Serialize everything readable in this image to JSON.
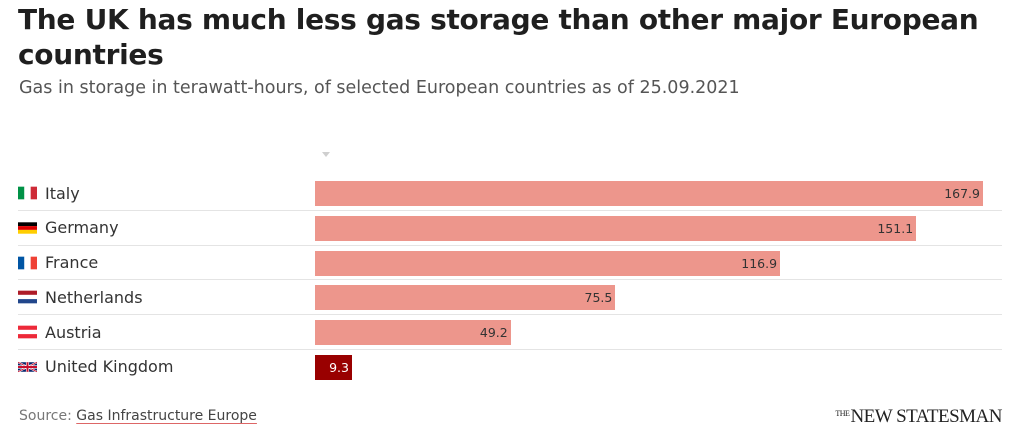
{
  "header": {
    "title": "The UK has much less gas storage than other major European countries",
    "subtitle": "Gas in storage in terawatt-hours, of selected European countries as of 25.09.2021"
  },
  "footer": {
    "source_prefix": "Source:",
    "source_link": "Gas Infrastructure Europe",
    "brand_small": "THE",
    "brand_main": "NEW STATESMAN"
  },
  "colors": {
    "bar": "#ed968c",
    "highlight": "#990000"
  },
  "flag_icons": [
    "italy-flag-icon",
    "germany-flag-icon",
    "france-flag-icon",
    "netherlands-flag-icon",
    "austria-flag-icon",
    "uk-flag-icon"
  ],
  "chart_data": {
    "type": "bar",
    "orientation": "horizontal",
    "categories": [
      "Italy",
      "Germany",
      "France",
      "Netherlands",
      "Austria",
      "United Kingdom"
    ],
    "values": [
      167.9,
      151.1,
      116.9,
      75.5,
      49.2,
      9.3
    ],
    "highlighted_category": "United Kingdom",
    "title": "The UK has much less gas storage than other major European countries",
    "subtitle": "Gas in storage in terawatt-hours, of selected European countries as of 25.09.2021",
    "xlabel": "",
    "ylabel": "",
    "xlim": [
      0,
      167.9
    ],
    "grid": false,
    "legend": "none"
  }
}
